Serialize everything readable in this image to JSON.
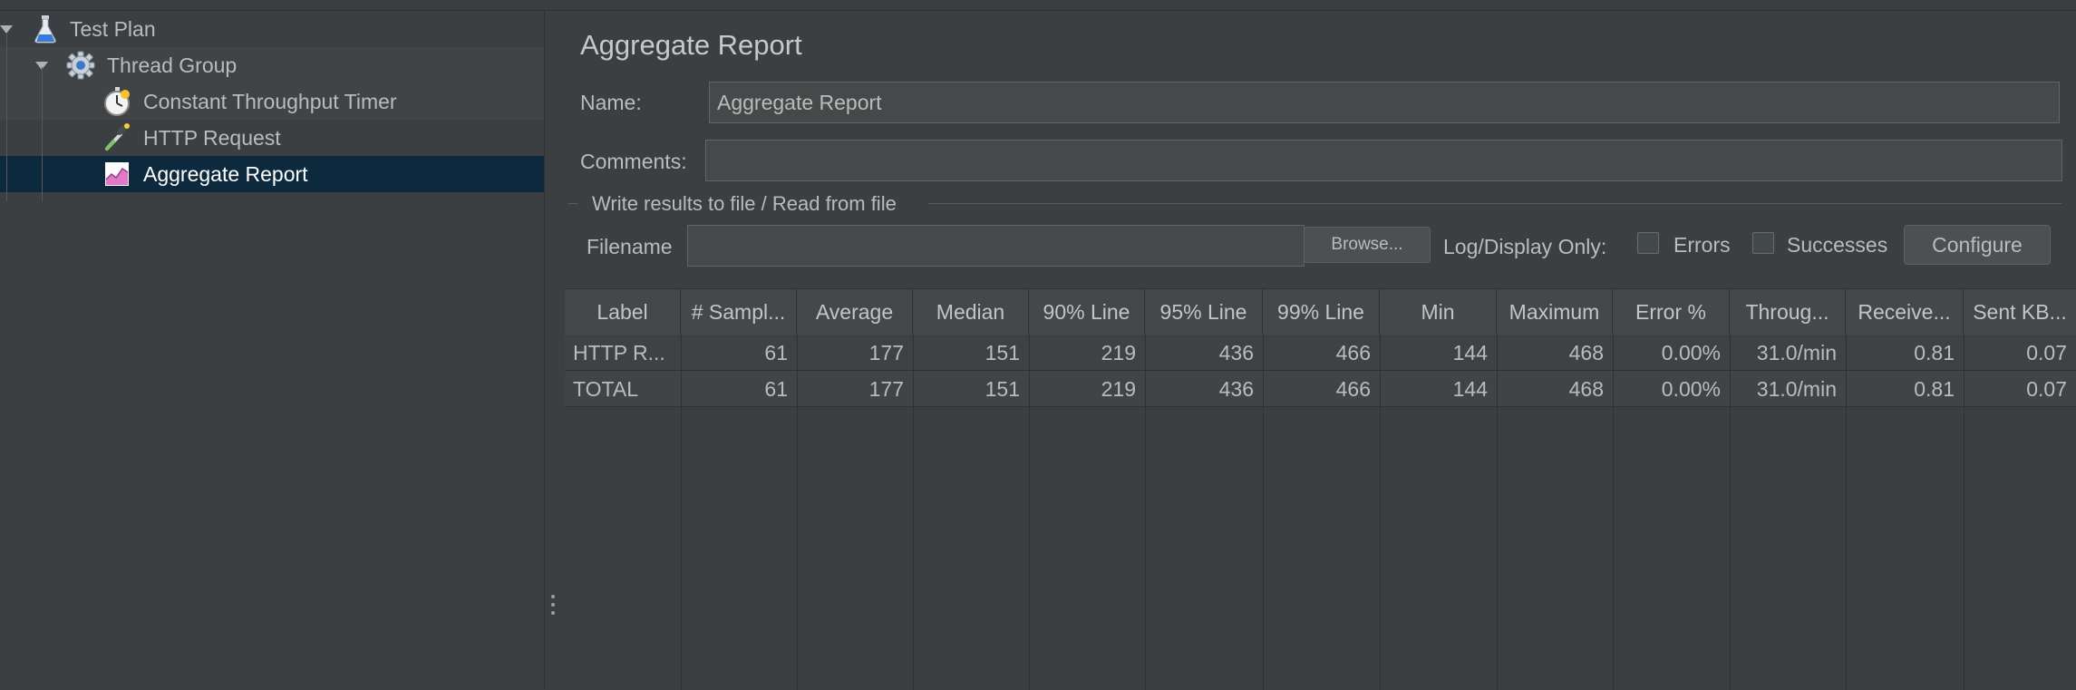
{
  "tree": {
    "items": [
      {
        "label": "Test Plan",
        "icon": "flask-icon"
      },
      {
        "label": "Thread Group",
        "icon": "gear-icon"
      },
      {
        "label": "Constant Throughput Timer",
        "icon": "stopwatch-icon"
      },
      {
        "label": "HTTP Request",
        "icon": "pipette-icon"
      },
      {
        "label": "Aggregate Report",
        "icon": "chart-icon",
        "selected": true
      }
    ]
  },
  "panel": {
    "title": "Aggregate Report",
    "name_label": "Name:",
    "name_value": "Aggregate Report",
    "comments_label": "Comments:",
    "comments_value": "",
    "fieldset_legend": "Write results to file / Read from file",
    "filename_label": "Filename",
    "filename_value": "",
    "browse_label": "Browse...",
    "log_display_label": "Log/Display Only:",
    "errors_label": "Errors",
    "successes_label": "Successes",
    "configure_label": "Configure"
  },
  "table": {
    "columns": [
      "Label",
      "# Sampl...",
      "Average",
      "Median",
      "90% Line",
      "95% Line",
      "99% Line",
      "Min",
      "Maximum",
      "Error %",
      "Throug...",
      "Receive...",
      "Sent KB..."
    ],
    "rows": [
      [
        "HTTP R...",
        "61",
        "177",
        "151",
        "219",
        "436",
        "466",
        "144",
        "468",
        "0.00%",
        "31.0/min",
        "0.81",
        "0.07"
      ],
      [
        "TOTAL",
        "61",
        "177",
        "151",
        "219",
        "436",
        "466",
        "144",
        "468",
        "0.00%",
        "31.0/min",
        "0.81",
        "0.07"
      ]
    ]
  },
  "colors": {
    "background": "#3c3f41",
    "selection": "#0d293e",
    "text": "#bbbbbb"
  }
}
